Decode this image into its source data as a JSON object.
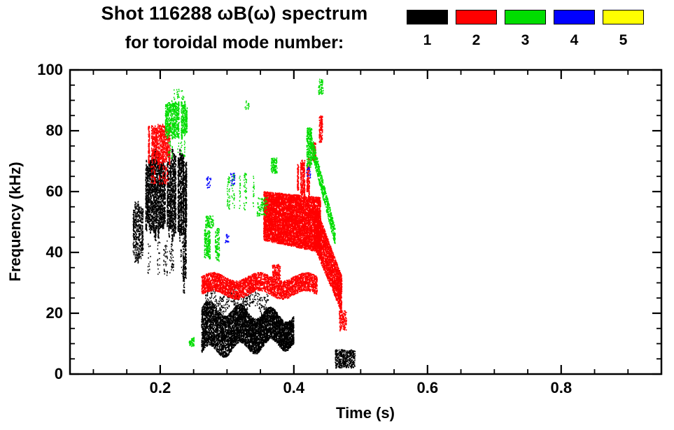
{
  "chart_data": {
    "type": "scatter",
    "title_line1": "Shot 116288 ωB(ω) spectrum",
    "title_line2": "for toroidal mode number:",
    "xlabel": "Time (s)",
    "ylabel": "Frequency (kHz)",
    "xlim": [
      0.065,
      0.95
    ],
    "ylim": [
      0,
      100
    ],
    "grid": false,
    "legend_position": "top-right",
    "xticks": [
      {
        "v": 0.2,
        "label": "0.2"
      },
      {
        "v": 0.4,
        "label": "0.4"
      },
      {
        "v": 0.6,
        "label": "0.6"
      },
      {
        "v": 0.8,
        "label": "0.8"
      }
    ],
    "yticks": [
      {
        "v": 0,
        "label": "0"
      },
      {
        "v": 20,
        "label": "20"
      },
      {
        "v": 40,
        "label": "40"
      },
      {
        "v": 60,
        "label": "60"
      },
      {
        "v": 80,
        "label": "80"
      },
      {
        "v": 100,
        "label": "100"
      }
    ],
    "x_minor_step": 0.05,
    "y_minor_step": 5,
    "legend": [
      {
        "label": "1",
        "color": "#000000"
      },
      {
        "label": "2",
        "color": "#ff0000"
      },
      {
        "label": "3",
        "color": "#00dd00"
      },
      {
        "label": "4",
        "color": "#0000ff"
      },
      {
        "label": "5",
        "color": "#ffff00"
      }
    ],
    "series": [
      {
        "name": "mode n=1",
        "color": "#000000",
        "clusters": [
          {
            "t": [
              0.157,
              0.177
            ],
            "f": [
              36,
              57
            ],
            "n": 650,
            "streak": true,
            "drop": 0.25
          },
          {
            "t": [
              0.178,
              0.24
            ],
            "f": [
              44,
              74
            ],
            "n": 3600,
            "streak": true,
            "drop": 0.12,
            "size": [
              1.5,
              2.2
            ]
          },
          {
            "t": [
              0.181,
              0.235
            ],
            "f": [
              32,
              44
            ],
            "n": 240,
            "streak": true,
            "drop": 0.5
          },
          {
            "t": [
              0.234,
              0.242
            ],
            "f": [
              26,
              71
            ],
            "n": 650,
            "streak": true,
            "drop": 0.08
          },
          {
            "t": [
              0.262,
              0.4
            ],
            "f": [
              7,
              22
            ],
            "f2": [
              10,
              19
            ],
            "n": 5200,
            "sin": [
              2.2,
              3
            ],
            "size": [
              1.5,
              2.2
            ]
          },
          {
            "t": [
              0.268,
              0.362
            ],
            "f": [
              21,
              27
            ],
            "n": 380,
            "sin": [
              1.8,
              3
            ]
          },
          {
            "t": [
              0.462,
              0.492
            ],
            "f": [
              2,
              8
            ],
            "n": 420
          }
        ]
      },
      {
        "name": "mode n=2",
        "color": "#ff0000",
        "clusters": [
          {
            "t": [
              0.182,
              0.215
            ],
            "f": [
              69,
              82
            ],
            "n": 1100,
            "streak": true,
            "drop": 0.15
          },
          {
            "t": [
              0.186,
              0.212
            ],
            "f": [
              62,
              69
            ],
            "n": 150,
            "streak": true,
            "drop": 0.55
          },
          {
            "t": [
              0.262,
              0.435
            ],
            "f": [
              26,
              32
            ],
            "n": 3000,
            "sin": [
              1.4,
              2.5
            ],
            "size": [
              1.5,
              2.0
            ]
          },
          {
            "t": [
              0.368,
              0.38
            ],
            "f": [
              31,
              36
            ],
            "n": 170
          },
          {
            "t": [
              0.355,
              0.44
            ],
            "f": [
              44,
              60
            ],
            "f2": [
              40,
              58
            ],
            "n": 5200,
            "size": [
              1.6,
              2.2
            ]
          },
          {
            "t": [
              0.405,
              0.424
            ],
            "f": [
              58,
              71
            ],
            "n": 650,
            "streak": true,
            "drop": 0.2
          },
          {
            "t": [
              0.428,
              0.433
            ],
            "f": [
              70,
              76
            ],
            "n": 110
          },
          {
            "t": [
              0.438,
              0.443
            ],
            "f": [
              76,
              85
            ],
            "n": 130
          },
          {
            "t": [
              0.43,
              0.472
            ],
            "f": [
              42,
              57
            ],
            "f2": [
              20,
              32
            ],
            "n": 2200,
            "size": [
              1.5,
              2.0
            ]
          },
          {
            "t": [
              0.468,
              0.479
            ],
            "f": [
              14,
              21
            ],
            "n": 140
          }
        ]
      },
      {
        "name": "mode n=3",
        "color": "#00dd00",
        "clusters": [
          {
            "t": [
              0.205,
              0.243
            ],
            "f": [
              77,
              90
            ],
            "n": 1050,
            "streak": true,
            "drop": 0.2
          },
          {
            "t": [
              0.213,
              0.238
            ],
            "f": [
              90,
              94
            ],
            "n": 70,
            "streak": true,
            "drop": 0.5
          },
          {
            "t": [
              0.209,
              0.24
            ],
            "f": [
              71,
              77
            ],
            "n": 110,
            "streak": true,
            "drop": 0.55
          },
          {
            "t": [
              0.266,
              0.289
            ],
            "f": [
              37,
              48
            ],
            "n": 420,
            "streak": true,
            "drop": 0.3
          },
          {
            "t": [
              0.268,
              0.28
            ],
            "f": [
              48,
              52
            ],
            "n": 80
          },
          {
            "t": [
              0.3,
              0.341
            ],
            "f": [
              54,
              66
            ],
            "n": 320,
            "streak": true,
            "drop": 0.45
          },
          {
            "t": [
              0.345,
              0.361
            ],
            "f": [
              52,
              58
            ],
            "n": 90
          },
          {
            "t": [
              0.366,
              0.375
            ],
            "f": [
              66,
              71
            ],
            "n": 110
          },
          {
            "t": [
              0.327,
              0.333
            ],
            "f": [
              87,
              90
            ],
            "n": 16
          },
          {
            "t": [
              0.419,
              0.427
            ],
            "f": [
              68,
              81
            ],
            "n": 240
          },
          {
            "t": [
              0.425,
              0.462
            ],
            "f": [
              74,
              80
            ],
            "f2": [
              42,
              48
            ],
            "n": 620
          },
          {
            "t": [
              0.437,
              0.444
            ],
            "f": [
              92,
              97
            ],
            "n": 55
          },
          {
            "t": [
              0.243,
              0.251
            ],
            "f": [
              9,
              12
            ],
            "n": 55
          }
        ]
      },
      {
        "name": "mode n=4",
        "color": "#0000ff",
        "clusters": [
          {
            "t": [
              0.269,
              0.276
            ],
            "f": [
              61,
              65
            ],
            "n": 26
          },
          {
            "t": [
              0.305,
              0.312
            ],
            "f": [
              62,
              66
            ],
            "n": 22
          },
          {
            "t": [
              0.297,
              0.303
            ],
            "f": [
              43,
              46
            ],
            "n": 16
          },
          {
            "t": [
              0.419,
              0.425
            ],
            "f": [
              64,
              68
            ],
            "n": 16
          }
        ]
      },
      {
        "name": "mode n=5",
        "color": "#ffff00",
        "clusters": []
      }
    ]
  }
}
